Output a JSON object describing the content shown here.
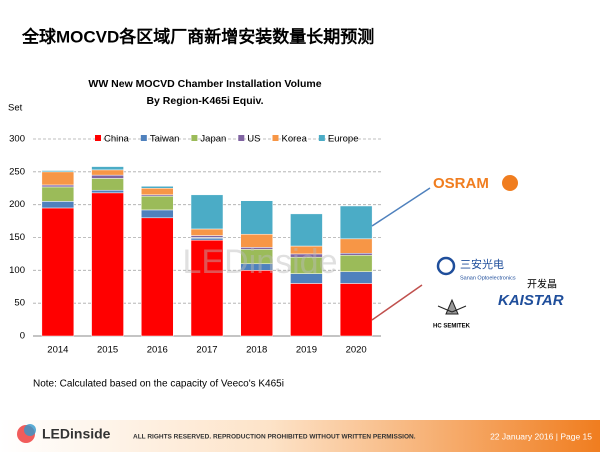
{
  "heading": "全球MOCVD各区域厂商新增安装数量长期预测",
  "chart_data": {
    "type": "bar",
    "stacked": true,
    "title": "WW New MOCVD Chamber Installation Volume",
    "subtitle": "By Region-K465i Equiv.",
    "y_label": "Set",
    "categories": [
      "2014",
      "2015",
      "2016",
      "2017",
      "2018",
      "2019",
      "2020"
    ],
    "series": [
      {
        "name": "China",
        "color": "#ff0000",
        "values": [
          195,
          218,
          180,
          146,
          100,
          80,
          80
        ]
      },
      {
        "name": "Taiwan",
        "color": "#4f81bd",
        "values": [
          10,
          4,
          12,
          3,
          10,
          15,
          18
        ]
      },
      {
        "name": "Japan",
        "color": "#9bbb59",
        "values": [
          22,
          18,
          21,
          1,
          22,
          25,
          25
        ]
      },
      {
        "name": "US",
        "color": "#8064a2",
        "values": [
          3,
          5,
          2,
          3,
          3,
          5,
          3
        ]
      },
      {
        "name": "Korea",
        "color": "#f79646",
        "values": [
          20,
          8,
          10,
          10,
          20,
          12,
          22
        ]
      },
      {
        "name": "Europe",
        "color": "#4bacc6",
        "values": [
          2,
          5,
          3,
          52,
          51,
          49,
          50
        ]
      }
    ],
    "ylim": [
      0,
      300
    ],
    "yticks": [
      0,
      50,
      100,
      150,
      200,
      250,
      300
    ],
    "grid": true,
    "legend": "top"
  },
  "note": "Note: Calculated based on the capacity of Veeco's K465i",
  "watermark": "LEDinside",
  "logos": {
    "osram": "OSRAM",
    "sanan": "三安光电",
    "sanan_en": "Sanan Optoelectronics",
    "kaistar_cn": "开发晶",
    "kaistar": "KAISTAR",
    "hc": "HC SEMITEK"
  },
  "footer": {
    "logo": "LEDinside",
    "rights": "ALL RIGHTS RESERVED. REPRODUCTION PROHIBITED WITHOUT WRITTEN PERMISSION.",
    "date_page": "22 January 2016 | Page 15"
  }
}
